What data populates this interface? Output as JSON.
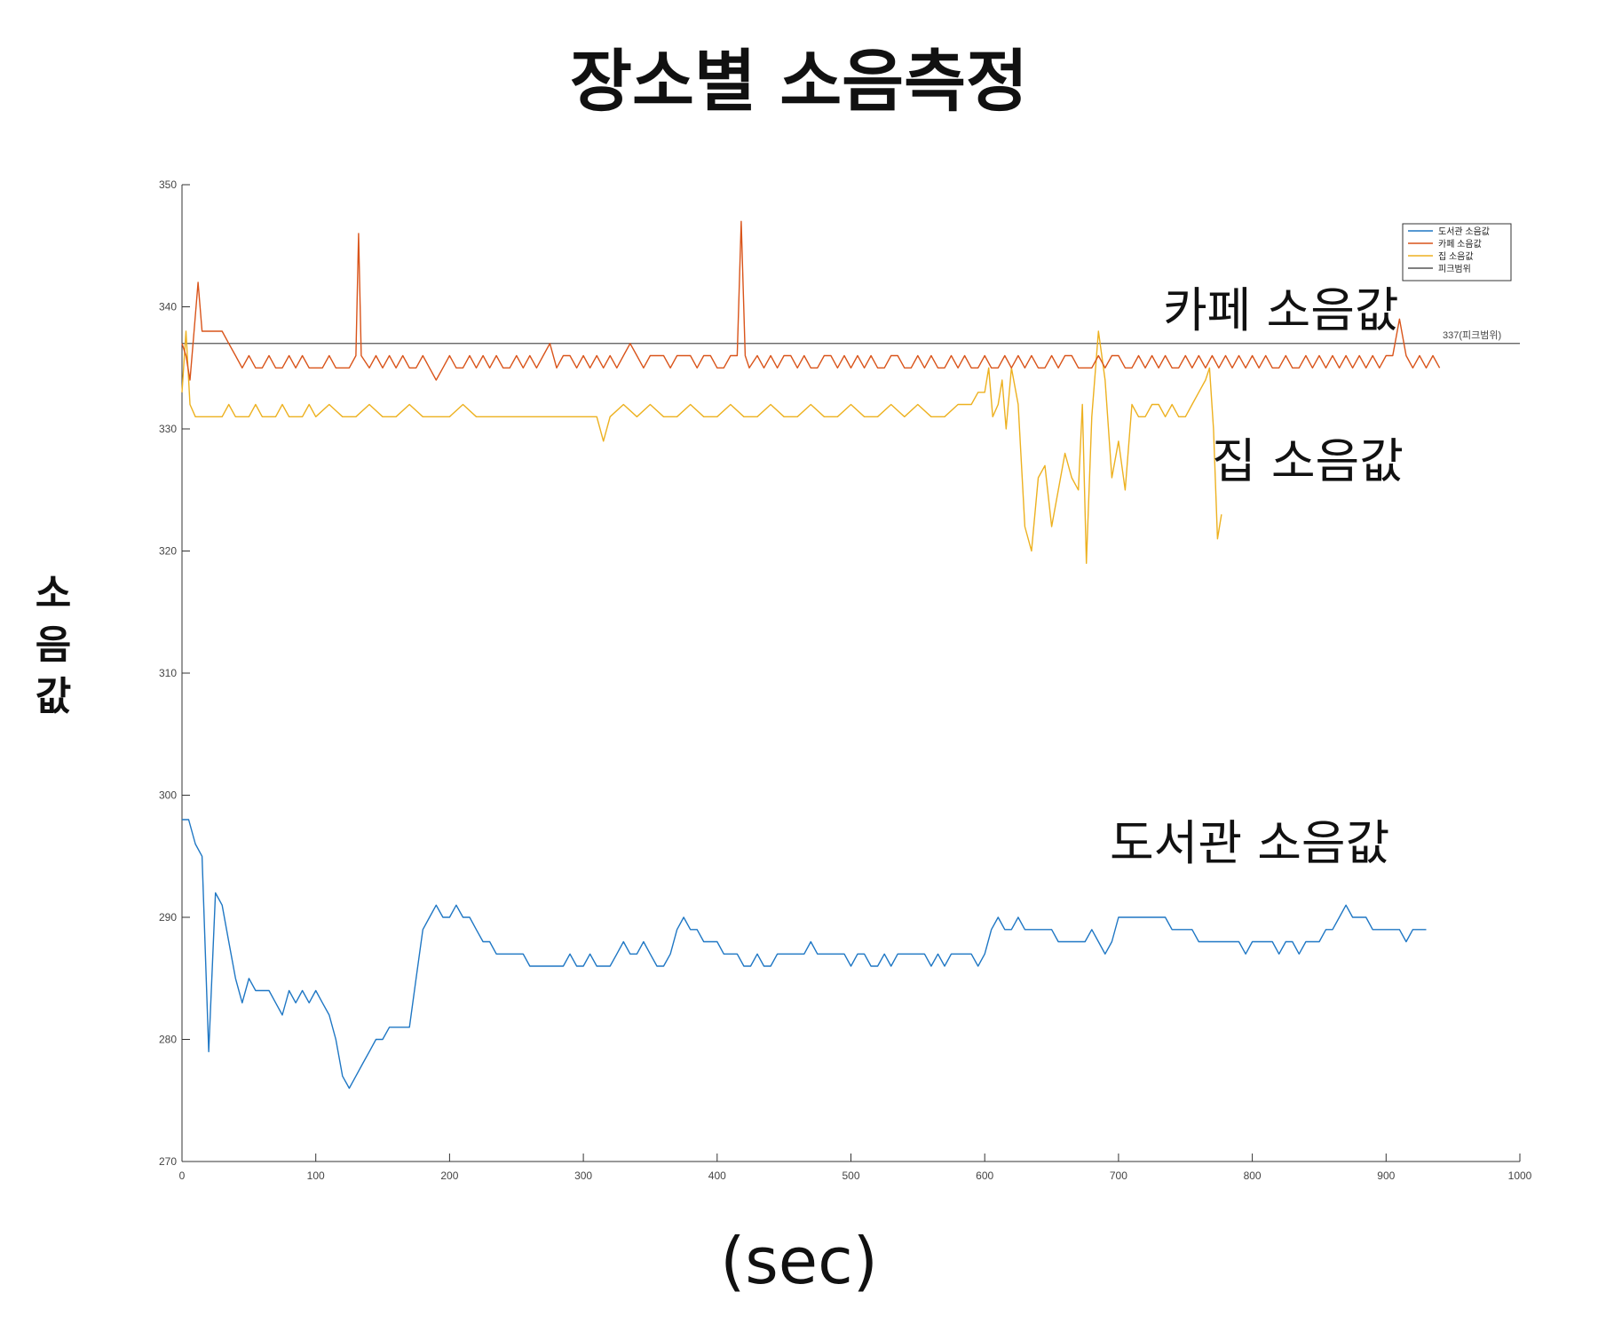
{
  "chart_data": {
    "type": "line",
    "title": "장소별 소음측정",
    "xlabel": "(sec)",
    "ylabel": "소음값",
    "xlim": [
      0,
      1000
    ],
    "ylim": [
      270,
      350
    ],
    "xticks": [
      0,
      100,
      200,
      300,
      400,
      500,
      600,
      700,
      800,
      900,
      1000
    ],
    "yticks": [
      270,
      280,
      290,
      300,
      310,
      320,
      330,
      340,
      350
    ],
    "grid": false,
    "legend_position": "top-right",
    "reference_line": {
      "name": "피크범위",
      "y": 337,
      "label": "337(피크범위)",
      "color": "#555555"
    },
    "annotations": [
      {
        "text": "카페 소음값",
        "series": "카페 소음값"
      },
      {
        "text": "집 소음값",
        "series": "집 소음값"
      },
      {
        "text": "도서관 소음값",
        "series": "도서관 소음값"
      }
    ],
    "series": [
      {
        "name": "도서관 소음값",
        "color": "#1f77c4",
        "x": [
          0,
          5,
          10,
          15,
          20,
          25,
          30,
          35,
          40,
          45,
          50,
          55,
          60,
          65,
          70,
          75,
          80,
          85,
          90,
          95,
          100,
          105,
          110,
          115,
          120,
          125,
          130,
          135,
          140,
          145,
          150,
          155,
          160,
          165,
          170,
          175,
          180,
          185,
          190,
          195,
          200,
          205,
          210,
          215,
          220,
          225,
          230,
          235,
          240,
          245,
          250,
          255,
          260,
          265,
          270,
          275,
          280,
          285,
          290,
          295,
          300,
          305,
          310,
          315,
          320,
          325,
          330,
          335,
          340,
          345,
          350,
          355,
          360,
          365,
          370,
          375,
          380,
          385,
          390,
          395,
          400,
          405,
          410,
          415,
          420,
          425,
          430,
          435,
          440,
          445,
          450,
          455,
          460,
          465,
          470,
          475,
          480,
          485,
          490,
          495,
          500,
          505,
          510,
          515,
          520,
          525,
          530,
          535,
          540,
          545,
          550,
          555,
          560,
          565,
          570,
          575,
          580,
          585,
          590,
          595,
          600,
          605,
          610,
          615,
          620,
          625,
          630,
          635,
          640,
          645,
          650,
          655,
          660,
          665,
          670,
          675,
          680,
          685,
          690,
          695,
          700,
          705,
          710,
          715,
          720,
          725,
          730,
          735,
          740,
          745,
          750,
          755,
          760,
          765,
          770,
          775,
          780,
          785,
          790,
          795,
          800,
          805,
          810,
          815,
          820,
          825,
          830,
          835,
          840,
          845,
          850,
          855,
          860,
          865,
          870,
          875,
          880,
          885,
          890,
          895,
          900,
          905,
          910,
          915,
          920,
          925,
          930
        ],
        "y": [
          298,
          298,
          296,
          295,
          279,
          292,
          291,
          288,
          285,
          283,
          285,
          284,
          284,
          284,
          283,
          282,
          284,
          283,
          284,
          283,
          284,
          283,
          282,
          280,
          277,
          276,
          277,
          278,
          279,
          280,
          280,
          281,
          281,
          281,
          281,
          285,
          289,
          290,
          291,
          290,
          290,
          291,
          290,
          290,
          289,
          288,
          288,
          287,
          287,
          287,
          287,
          287,
          286,
          286,
          286,
          286,
          286,
          286,
          287,
          286,
          286,
          287,
          286,
          286,
          286,
          287,
          288,
          287,
          287,
          288,
          287,
          286,
          286,
          287,
          289,
          290,
          289,
          289,
          288,
          288,
          288,
          287,
          287,
          287,
          286,
          286,
          287,
          286,
          286,
          287,
          287,
          287,
          287,
          287,
          288,
          287,
          287,
          287,
          287,
          287,
          286,
          287,
          287,
          286,
          286,
          287,
          286,
          287,
          287,
          287,
          287,
          287,
          286,
          287,
          286,
          287,
          287,
          287,
          287,
          286,
          287,
          289,
          290,
          289,
          289,
          290,
          289,
          289,
          289,
          289,
          289,
          288,
          288,
          288,
          288,
          288,
          289,
          288,
          287,
          288,
          290,
          290,
          290,
          290,
          290,
          290,
          290,
          290,
          289,
          289,
          289,
          289,
          288,
          288,
          288,
          288,
          288,
          288,
          288,
          287,
          288,
          288,
          288,
          288,
          287,
          288,
          288,
          287,
          288,
          288,
          288,
          289,
          289,
          290,
          291,
          290,
          290,
          290,
          289,
          289,
          289,
          289,
          289,
          288,
          289,
          289,
          289
        ]
      },
      {
        "name": "카페 소음값",
        "color": "#d9541a",
        "x": [
          0,
          3,
          6,
          9,
          12,
          15,
          20,
          25,
          30,
          35,
          40,
          45,
          50,
          55,
          60,
          65,
          70,
          75,
          80,
          85,
          90,
          95,
          100,
          105,
          110,
          115,
          120,
          125,
          130,
          132,
          134,
          140,
          145,
          150,
          155,
          160,
          165,
          170,
          175,
          180,
          185,
          190,
          195,
          200,
          205,
          210,
          215,
          220,
          225,
          230,
          235,
          240,
          245,
          250,
          255,
          260,
          265,
          270,
          275,
          280,
          285,
          290,
          295,
          300,
          305,
          310,
          315,
          320,
          325,
          330,
          335,
          340,
          345,
          350,
          355,
          360,
          365,
          370,
          375,
          380,
          385,
          390,
          395,
          400,
          405,
          410,
          415,
          418,
          421,
          424,
          430,
          435,
          440,
          445,
          450,
          455,
          460,
          465,
          470,
          475,
          480,
          485,
          490,
          495,
          500,
          505,
          510,
          515,
          520,
          525,
          530,
          535,
          540,
          545,
          550,
          555,
          560,
          565,
          570,
          575,
          580,
          585,
          590,
          595,
          600,
          605,
          610,
          615,
          620,
          625,
          630,
          635,
          640,
          645,
          650,
          655,
          660,
          665,
          670,
          675,
          680,
          685,
          690,
          695,
          700,
          705,
          710,
          715,
          720,
          725,
          730,
          735,
          740,
          745,
          750,
          755,
          760,
          765,
          770,
          775,
          780,
          785,
          790,
          795,
          800,
          805,
          810,
          815,
          820,
          825,
          830,
          835,
          840,
          845,
          850,
          855,
          860,
          865,
          870,
          875,
          880,
          885,
          890,
          895,
          900,
          905,
          910,
          915,
          920,
          925,
          930,
          935,
          940
        ],
        "y": [
          337,
          336,
          334,
          338,
          342,
          338,
          338,
          338,
          338,
          337,
          336,
          335,
          336,
          335,
          335,
          336,
          335,
          335,
          336,
          335,
          336,
          335,
          335,
          335,
          336,
          335,
          335,
          335,
          336,
          346,
          336,
          335,
          336,
          335,
          336,
          335,
          336,
          335,
          335,
          336,
          335,
          334,
          335,
          336,
          335,
          335,
          336,
          335,
          336,
          335,
          336,
          335,
          335,
          336,
          335,
          336,
          335,
          336,
          337,
          335,
          336,
          336,
          335,
          336,
          335,
          336,
          335,
          336,
          335,
          336,
          337,
          336,
          335,
          336,
          336,
          336,
          335,
          336,
          336,
          336,
          335,
          336,
          336,
          335,
          335,
          336,
          336,
          347,
          336,
          335,
          336,
          335,
          336,
          335,
          336,
          336,
          335,
          336,
          335,
          335,
          336,
          336,
          335,
          336,
          335,
          336,
          335,
          336,
          335,
          335,
          336,
          336,
          335,
          335,
          336,
          335,
          336,
          335,
          335,
          336,
          335,
          336,
          335,
          335,
          336,
          335,
          335,
          336,
          335,
          336,
          335,
          336,
          335,
          335,
          336,
          335,
          336,
          336,
          335,
          335,
          335,
          336,
          335,
          336,
          336,
          335,
          335,
          336,
          335,
          336,
          335,
          336,
          335,
          335,
          336,
          335,
          336,
          335,
          336,
          335,
          336,
          335,
          336,
          335,
          336,
          335,
          336,
          335,
          335,
          336,
          335,
          335,
          336,
          335,
          336,
          335,
          336,
          335,
          336,
          335,
          336,
          335,
          336,
          335,
          336,
          336,
          339,
          336,
          335,
          336,
          335,
          336,
          335
        ]
      },
      {
        "name": "집 소음값",
        "color": "#edb120",
        "x": [
          0,
          3,
          6,
          10,
          15,
          20,
          25,
          30,
          35,
          40,
          45,
          50,
          55,
          60,
          65,
          70,
          75,
          80,
          85,
          90,
          95,
          100,
          110,
          120,
          130,
          140,
          150,
          160,
          170,
          180,
          190,
          200,
          210,
          220,
          230,
          240,
          250,
          260,
          270,
          280,
          290,
          300,
          310,
          315,
          320,
          330,
          340,
          350,
          360,
          370,
          380,
          390,
          400,
          410,
          420,
          430,
          440,
          450,
          460,
          470,
          480,
          490,
          500,
          510,
          520,
          530,
          540,
          550,
          560,
          570,
          580,
          585,
          590,
          595,
          600,
          603,
          606,
          610,
          613,
          616,
          620,
          625,
          630,
          635,
          640,
          645,
          650,
          655,
          660,
          665,
          670,
          673,
          676,
          680,
          685,
          690,
          695,
          700,
          705,
          710,
          715,
          720,
          725,
          730,
          735,
          740,
          745,
          750,
          755,
          760,
          765,
          768,
          771,
          774,
          777
        ],
        "y": [
          333,
          338,
          332,
          331,
          331,
          331,
          331,
          331,
          332,
          331,
          331,
          331,
          332,
          331,
          331,
          331,
          332,
          331,
          331,
          331,
          332,
          331,
          332,
          331,
          331,
          332,
          331,
          331,
          332,
          331,
          331,
          331,
          332,
          331,
          331,
          331,
          331,
          331,
          331,
          331,
          331,
          331,
          331,
          329,
          331,
          332,
          331,
          332,
          331,
          331,
          332,
          331,
          331,
          332,
          331,
          331,
          332,
          331,
          331,
          332,
          331,
          331,
          332,
          331,
          331,
          332,
          331,
          332,
          331,
          331,
          332,
          332,
          332,
          333,
          333,
          335,
          331,
          332,
          334,
          330,
          335,
          332,
          322,
          320,
          326,
          327,
          322,
          325,
          328,
          326,
          325,
          332,
          319,
          331,
          338,
          334,
          326,
          329,
          325,
          332,
          331,
          331,
          332,
          332,
          331,
          332,
          331,
          331,
          332,
          333,
          334,
          335,
          330,
          321,
          323
        ]
      }
    ]
  }
}
